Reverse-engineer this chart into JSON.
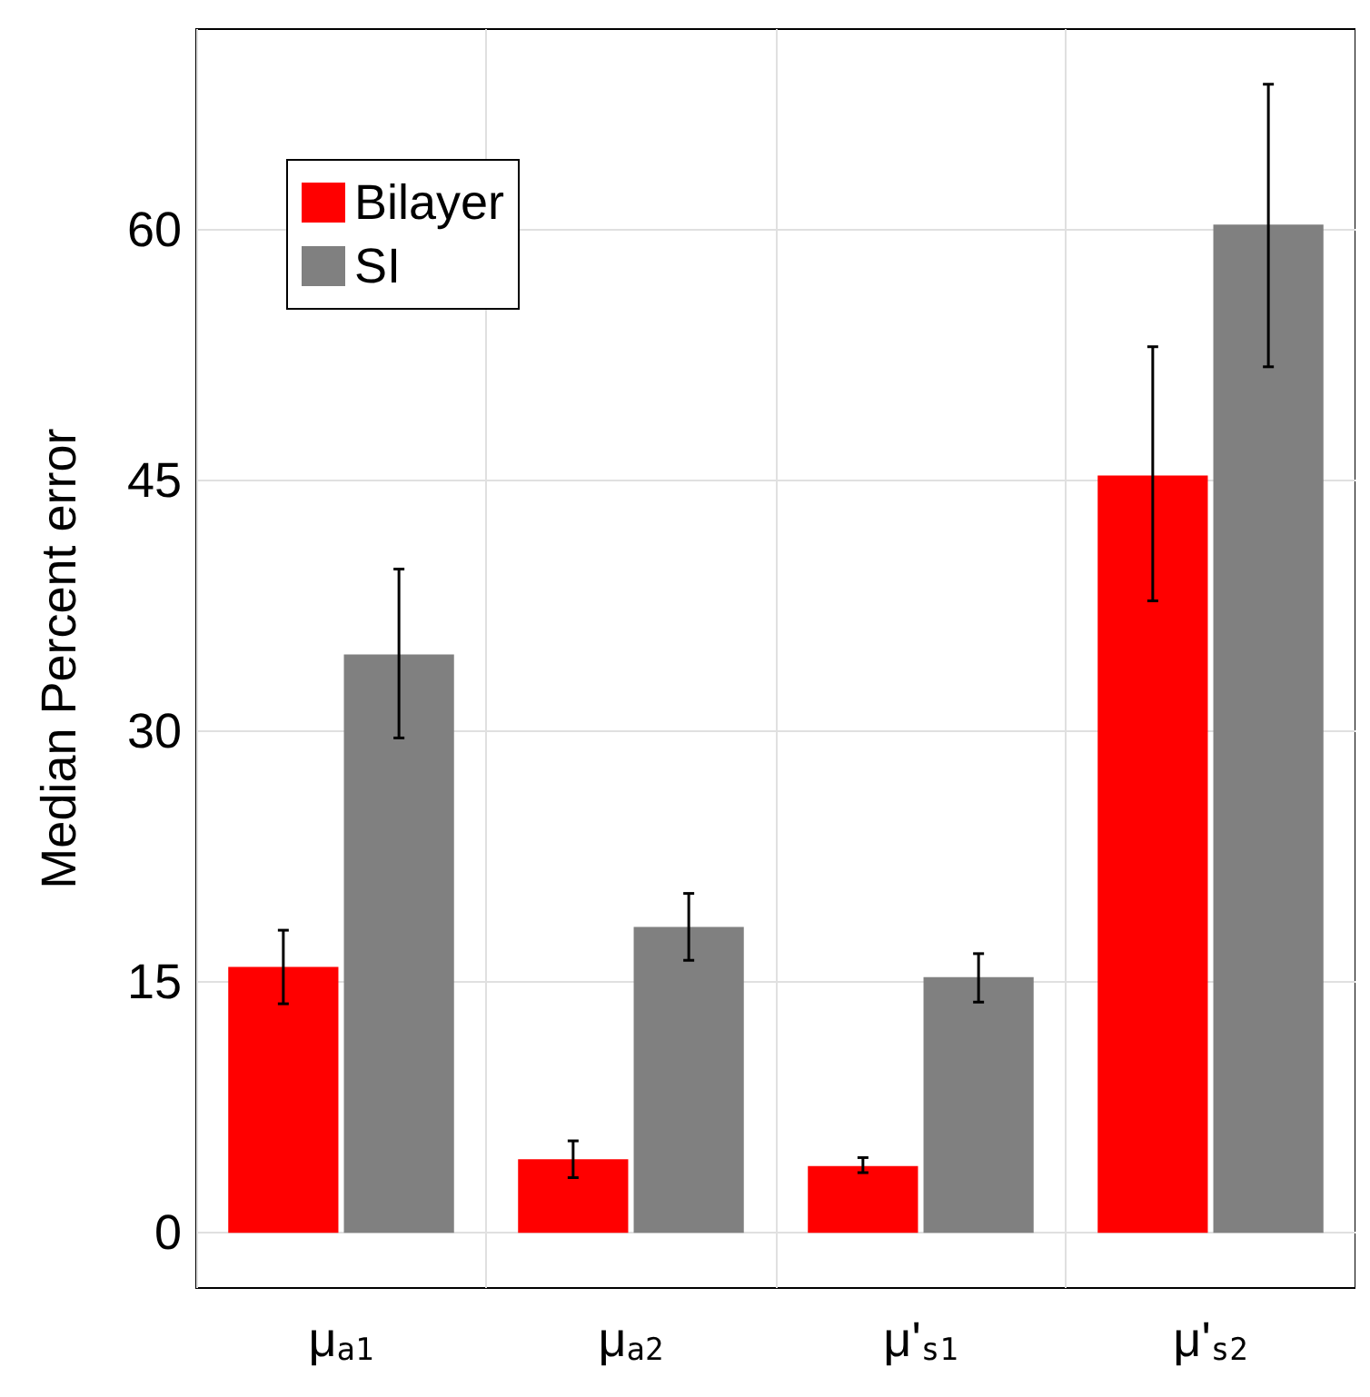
{
  "chart_data": {
    "type": "bar",
    "ylabel": "Median Percent error",
    "categories": [
      "μ$_{a1}$",
      "μ$_{a2}$",
      "μ'$_{s1}$",
      "μ'$_{s2}$"
    ],
    "series": [
      {
        "name": "Bilayer",
        "color": "#ff0000",
        "values": [
          15.9,
          4.4,
          4.0,
          45.3
        ],
        "errors": [
          [
            13.7,
            18.1
          ],
          [
            3.3,
            5.5
          ],
          [
            3.6,
            4.5
          ],
          [
            37.8,
            53.0
          ]
        ]
      },
      {
        "name": "SI",
        "color": "#808080",
        "values": [
          34.6,
          18.3,
          15.3,
          60.3
        ],
        "errors": [
          [
            29.6,
            39.7
          ],
          [
            16.3,
            20.3
          ],
          [
            13.8,
            16.7
          ],
          [
            51.8,
            68.7
          ]
        ]
      }
    ],
    "ylim": [
      -3.3,
      72
    ],
    "yticks": [
      0,
      15,
      30,
      45,
      60
    ],
    "grid": true,
    "legend": "top left"
  }
}
